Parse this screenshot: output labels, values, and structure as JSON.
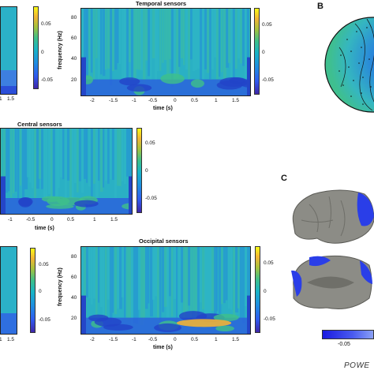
{
  "panel_b_label": "B",
  "panel_c_label": "C",
  "caption": "POWE",
  "panels": {
    "temporal": {
      "title": "Temporal sensors"
    },
    "central": {
      "title": "Central sensors"
    },
    "occipital": {
      "title": "Occipital sensors"
    }
  },
  "axes": {
    "ylabel": "frequency (Hz)",
    "xlabel": "time (s)",
    "x_ticks_full": [
      "-2",
      "-1.5",
      "-1",
      "-0.5",
      "0",
      "0.5",
      "1",
      "1.5"
    ],
    "x_ticks_central": [
      "-1",
      "-0.5",
      "0",
      "0.5",
      "1",
      "1.5"
    ],
    "x_ticks_left": [
      "1",
      "1.5"
    ],
    "y_ticks": [
      "80",
      "60",
      "40",
      "20"
    ],
    "cbar_ticks": [
      "0.05",
      "0",
      "-0.05"
    ],
    "hbar_tick": "-0.05"
  },
  "colors": {
    "cbar_low": "#3e26a8",
    "cbar_mid": "#18b4c6",
    "cbar_high": "#f9fb15",
    "brain_gray": "#8c8c86",
    "brain_blue": "#2a3ee8"
  }
}
